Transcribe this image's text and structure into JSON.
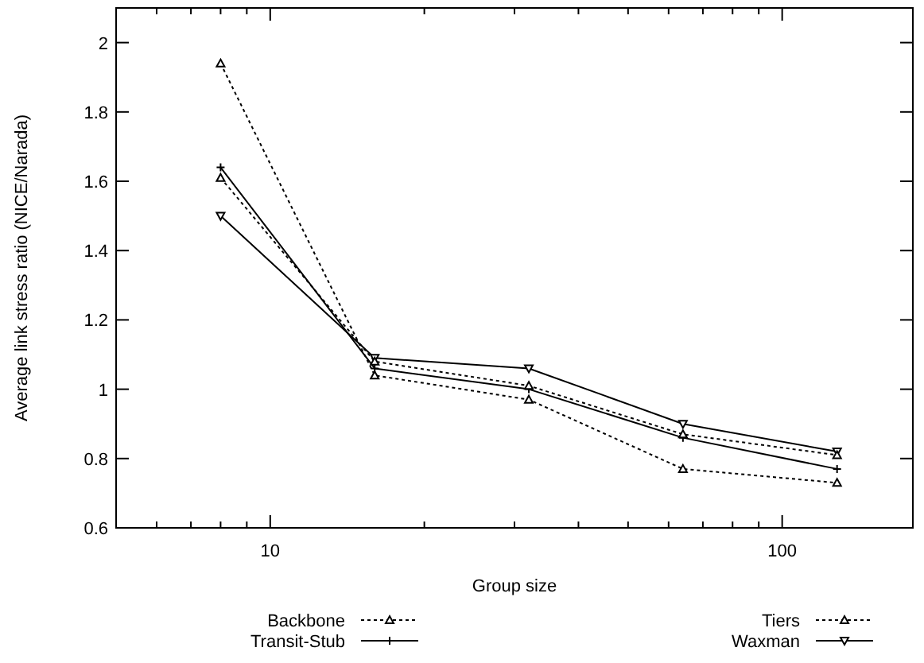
{
  "chart_data": {
    "type": "line",
    "xlabel": "Group size",
    "ylabel": "Average link stress ratio (NICE/Narada)",
    "log": "x",
    "x": [
      8,
      16,
      32,
      64,
      128
    ],
    "xlim": [
      5,
      180
    ],
    "xticks": [
      {
        "value": 5,
        "label": null
      },
      {
        "value": 6,
        "label": null
      },
      {
        "value": 7,
        "label": null
      },
      {
        "value": 8,
        "label": null
      },
      {
        "value": 9,
        "label": null
      },
      10,
      {
        "value": 20,
        "label": null
      },
      {
        "value": 30,
        "label": null
      },
      {
        "value": 40,
        "label": null
      },
      {
        "value": 50,
        "label": null
      },
      {
        "value": 60,
        "label": null
      },
      {
        "value": 70,
        "label": null
      },
      {
        "value": 80,
        "label": null
      },
      {
        "value": 90,
        "label": null
      },
      100
    ],
    "ylim": [
      0.6,
      2.1
    ],
    "yticks": [
      0.6,
      0.8,
      1,
      1.2,
      1.4,
      1.6,
      1.8,
      2
    ],
    "grid": false,
    "legend": "bottom",
    "series": [
      {
        "name": "Backbone",
        "color": "#000000",
        "line_style": "dotted",
        "marker": "triangle",
        "values": [
          1.61,
          1.08,
          1.01,
          0.87,
          0.81
        ]
      },
      {
        "name": "Transit-Stub",
        "color": "#000000",
        "line_style": "solid",
        "marker": "cross",
        "values": [
          1.64,
          1.06,
          1.0,
          0.86,
          0.77
        ]
      },
      {
        "name": "Tiers",
        "color": "#000000",
        "line_style": "dotted",
        "marker": "triangle",
        "values": [
          1.94,
          1.04,
          0.97,
          0.77,
          0.73
        ]
      },
      {
        "name": "Waxman",
        "color": "#000000",
        "line_style": "solid",
        "marker": "triangle-down",
        "values": [
          1.5,
          1.09,
          1.06,
          0.9,
          0.82
        ]
      }
    ]
  }
}
